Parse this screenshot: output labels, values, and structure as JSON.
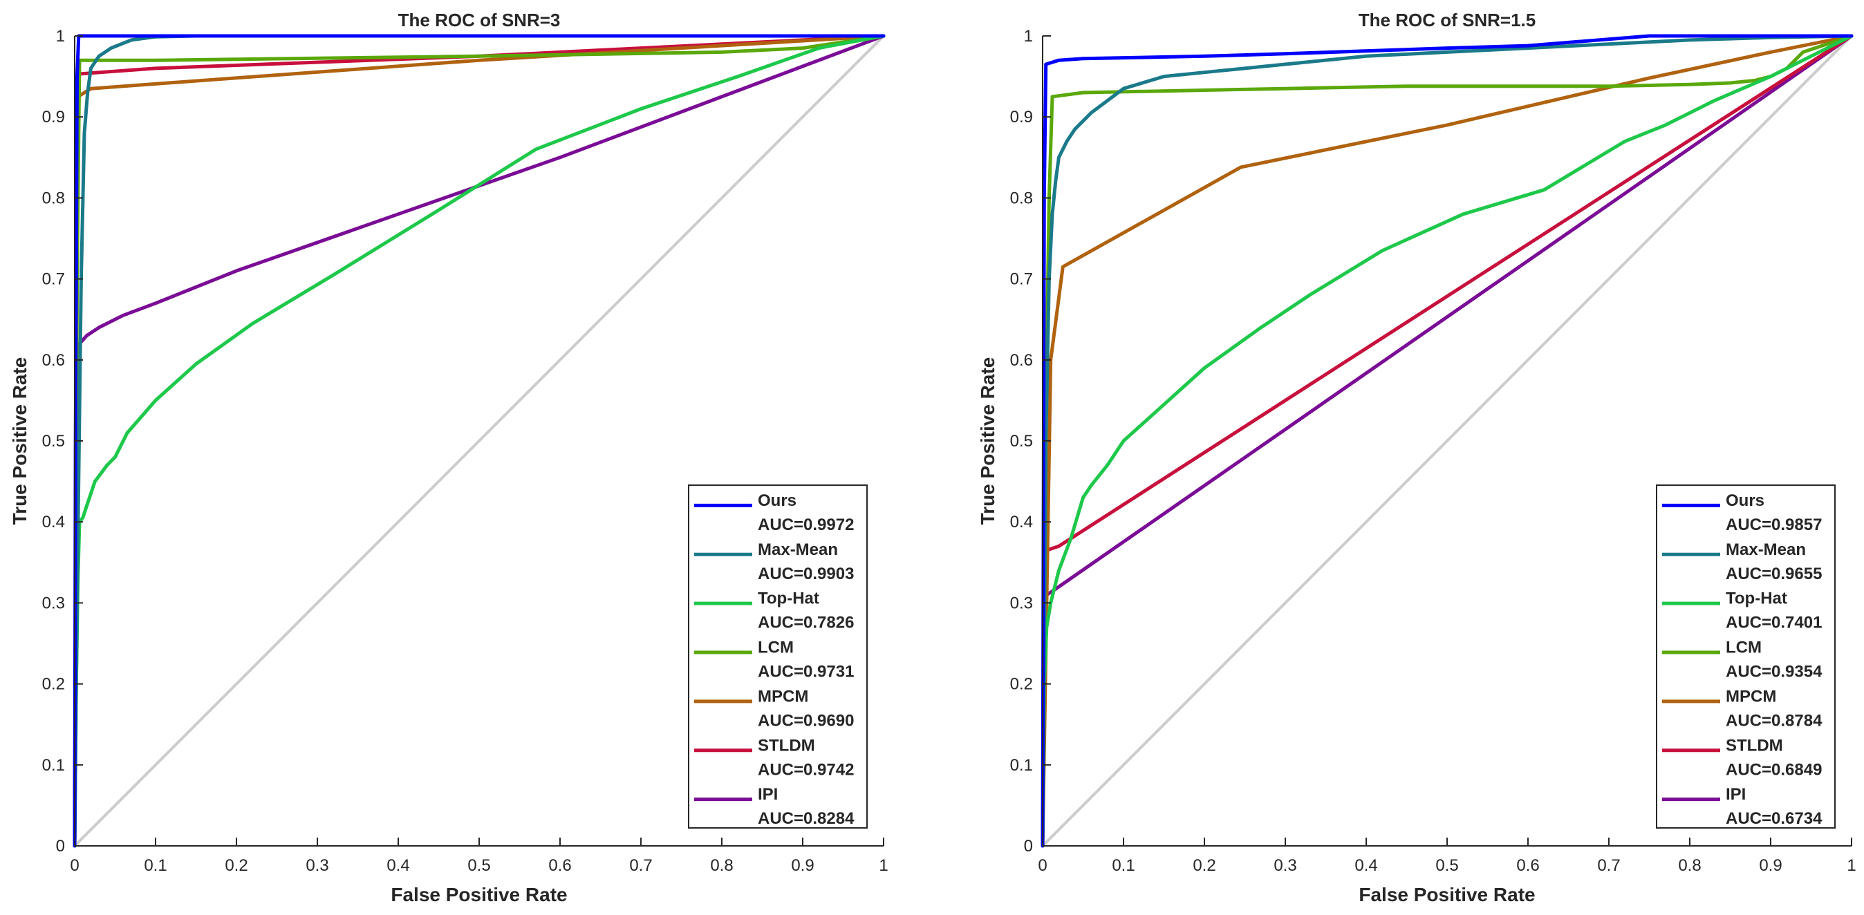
{
  "chart_data": [
    {
      "type": "line",
      "title": "The ROC of SNR=3",
      "xlabel": "False Positive Rate",
      "ylabel": "True Positive Rate",
      "xlim": [
        0,
        1
      ],
      "ylim": [
        0,
        1
      ],
      "xticks": [
        "0",
        "0.1",
        "0.2",
        "0.3",
        "0.4",
        "0.5",
        "0.6",
        "0.7",
        "0.8",
        "0.9",
        "1"
      ],
      "yticks": [
        "0",
        "0.1",
        "0.2",
        "0.3",
        "0.4",
        "0.5",
        "0.6",
        "0.7",
        "0.8",
        "0.9",
        "1"
      ],
      "grid": false,
      "legend_position": "bottom-right",
      "reference_line": {
        "name": "Chance",
        "color": "#cccccc",
        "x": [
          0,
          1
        ],
        "y": [
          0,
          1
        ]
      },
      "series": [
        {
          "name": "Ours",
          "auc": "AUC=0.9972",
          "color": "#0000ff",
          "x": [
            0,
            0.001,
            0.003,
            0.005,
            1
          ],
          "y": [
            0,
            0.5,
            0.95,
            1.0,
            1.0
          ]
        },
        {
          "name": "Max-Mean",
          "auc": "AUC=0.9903",
          "color": "#1a7a8a",
          "x": [
            0,
            0.003,
            0.008,
            0.012,
            0.016,
            0.02,
            0.03,
            0.045,
            0.07,
            0.1,
            0.15,
            0.2,
            1
          ],
          "y": [
            0,
            0.3,
            0.7,
            0.88,
            0.93,
            0.96,
            0.975,
            0.985,
            0.995,
            0.999,
            1.0,
            1.0,
            1.0
          ]
        },
        {
          "name": "Top-Hat",
          "auc": "AUC=0.7826",
          "color": "#1ec84a",
          "x": [
            0,
            0.002,
            0.004,
            0.006,
            0.01,
            0.015,
            0.025,
            0.04,
            0.05,
            0.065,
            0.1,
            0.15,
            0.22,
            0.32,
            0.45,
            0.57,
            0.7,
            0.82,
            0.92,
            1
          ],
          "y": [
            0,
            0.2,
            0.33,
            0.4,
            0.405,
            0.42,
            0.45,
            0.47,
            0.48,
            0.51,
            0.55,
            0.595,
            0.645,
            0.705,
            0.785,
            0.86,
            0.91,
            0.95,
            0.985,
            1.0
          ]
        },
        {
          "name": "LCM",
          "auc": "AUC=0.9731",
          "color": "#5aa80a",
          "x": [
            0,
            0.003,
            0.006,
            0.1,
            0.5,
            0.8,
            0.9,
            1
          ],
          "y": [
            0,
            0.7,
            0.97,
            0.97,
            0.975,
            0.98,
            0.985,
            1.0
          ]
        },
        {
          "name": "MPCM",
          "auc": "AUC=0.9690",
          "color": "#b0620f",
          "x": [
            0,
            0.002,
            0.004,
            0.02,
            0.5,
            1
          ],
          "y": [
            0,
            0.6,
            0.925,
            0.935,
            0.97,
            1.0
          ]
        },
        {
          "name": "STLDM",
          "auc": "AUC=0.9742",
          "color": "#c8103c",
          "x": [
            0,
            0.002,
            0.004,
            0.1,
            0.5,
            1
          ],
          "y": [
            0,
            0.5,
            0.953,
            0.96,
            0.975,
            1.0
          ]
        },
        {
          "name": "IPI",
          "auc": "AUC=0.8284",
          "color": "#7a0c96",
          "x": [
            0,
            0.001,
            0.002,
            0.006,
            0.015,
            0.03,
            0.06,
            0.1,
            0.2,
            0.4,
            0.6,
            0.8,
            1
          ],
          "y": [
            0,
            0.3,
            0.55,
            0.62,
            0.63,
            0.64,
            0.655,
            0.67,
            0.71,
            0.78,
            0.85,
            0.925,
            1.0
          ]
        }
      ]
    },
    {
      "type": "line",
      "title": "The ROC of SNR=1.5",
      "xlabel": "False Positive Rate",
      "ylabel": "True Positive Rate",
      "xlim": [
        0,
        1
      ],
      "ylim": [
        0,
        1
      ],
      "xticks": [
        "0",
        "0.1",
        "0.2",
        "0.3",
        "0.4",
        "0.5",
        "0.6",
        "0.7",
        "0.8",
        "0.9",
        "1"
      ],
      "yticks": [
        "0",
        "0.1",
        "0.2",
        "0.3",
        "0.4",
        "0.5",
        "0.6",
        "0.7",
        "0.8",
        "0.9",
        "1"
      ],
      "grid": false,
      "legend_position": "bottom-right",
      "reference_line": {
        "name": "Chance",
        "color": "#cccccc",
        "x": [
          0,
          1
        ],
        "y": [
          0,
          1
        ]
      },
      "series": [
        {
          "name": "Ours",
          "auc": "AUC=0.9857",
          "color": "#0000ff",
          "x": [
            0,
            0.002,
            0.004,
            0.02,
            0.05,
            0.2,
            0.3,
            0.5,
            0.6,
            0.75,
            0.8,
            1
          ],
          "y": [
            0,
            0.8,
            0.965,
            0.97,
            0.972,
            0.975,
            0.978,
            0.985,
            0.988,
            1.0,
            1.0,
            1.0
          ]
        },
        {
          "name": "Max-Mean",
          "auc": "AUC=0.9655",
          "color": "#1a7a8a",
          "x": [
            0,
            0.004,
            0.008,
            0.012,
            0.016,
            0.02,
            0.03,
            0.04,
            0.06,
            0.1,
            0.15,
            0.2,
            0.3,
            0.4,
            0.5,
            0.6,
            0.7,
            0.8,
            0.9,
            1
          ],
          "y": [
            0,
            0.5,
            0.7,
            0.78,
            0.82,
            0.85,
            0.87,
            0.885,
            0.905,
            0.935,
            0.95,
            0.955,
            0.965,
            0.975,
            0.98,
            0.985,
            0.99,
            0.995,
            0.998,
            1.0
          ]
        },
        {
          "name": "Top-Hat",
          "auc": "AUC=0.7401",
          "color": "#1ec84a",
          "x": [
            0,
            0.002,
            0.005,
            0.01,
            0.02,
            0.035,
            0.05,
            0.06,
            0.08,
            0.1,
            0.15,
            0.2,
            0.27,
            0.33,
            0.42,
            0.52,
            0.62,
            0.67,
            0.72,
            0.77,
            0.83,
            0.9,
            1
          ],
          "y": [
            0,
            0.2,
            0.27,
            0.3,
            0.34,
            0.38,
            0.43,
            0.445,
            0.47,
            0.5,
            0.545,
            0.59,
            0.64,
            0.68,
            0.735,
            0.78,
            0.81,
            0.84,
            0.87,
            0.89,
            0.92,
            0.95,
            1.0
          ]
        },
        {
          "name": "LCM",
          "auc": "AUC=0.9354",
          "color": "#5aa80a",
          "x": [
            0,
            0.005,
            0.008,
            0.012,
            0.05,
            0.3,
            0.45,
            0.7,
            0.8,
            0.85,
            0.88,
            0.9,
            0.92,
            0.94,
            1
          ],
          "y": [
            0,
            0.6,
            0.8,
            0.925,
            0.93,
            0.935,
            0.938,
            0.938,
            0.94,
            0.942,
            0.945,
            0.95,
            0.96,
            0.98,
            1.0
          ]
        },
        {
          "name": "MPCM",
          "auc": "AUC=0.8784",
          "color": "#b0620f",
          "x": [
            0,
            0.01,
            0.025,
            0.245,
            0.5,
            0.75,
            0.9,
            1
          ],
          "y": [
            0,
            0.6,
            0.715,
            0.838,
            0.89,
            0.948,
            0.98,
            1.0
          ]
        },
        {
          "name": "STLDM",
          "auc": "AUC=0.6849",
          "color": "#c8103c",
          "x": [
            0,
            0.002,
            0.005,
            0.02,
            1
          ],
          "y": [
            0,
            0.3,
            0.365,
            0.37,
            1.0
          ]
        },
        {
          "name": "IPI",
          "auc": "AUC=0.6734",
          "color": "#7a0c96",
          "x": [
            0,
            0.002,
            0.005,
            0.01,
            1
          ],
          "y": [
            0,
            0.25,
            0.31,
            0.313,
            1.0
          ]
        }
      ]
    }
  ]
}
